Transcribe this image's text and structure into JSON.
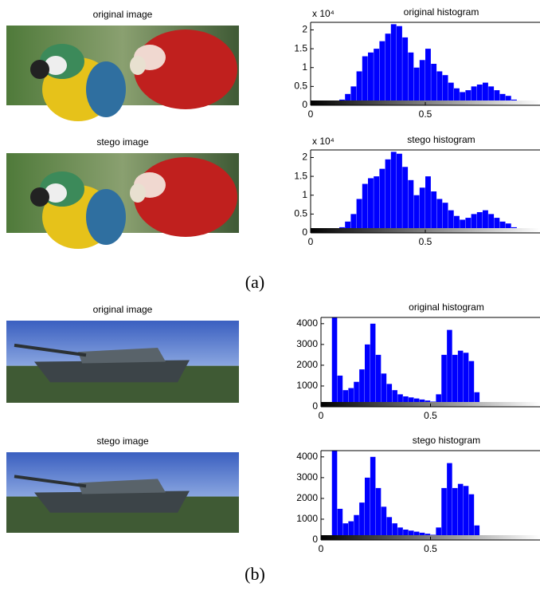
{
  "chart_data": [
    {
      "type": "histogram",
      "title": "original histogram",
      "annotation": "x 10⁴",
      "color": "#0000ff",
      "bins": [
        0,
        0.025,
        0.05,
        0.075,
        0.1,
        0.125,
        0.15,
        0.175,
        0.2,
        0.225,
        0.25,
        0.275,
        0.3,
        0.325,
        0.35,
        0.375,
        0.4,
        0.425,
        0.45,
        0.475,
        0.5,
        0.525,
        0.55,
        0.575,
        0.6,
        0.625,
        0.65,
        0.675,
        0.7,
        0.725,
        0.75,
        0.775,
        0.8,
        0.825,
        0.85,
        0.875,
        0.9,
        0.925,
        0.95,
        0.975,
        1
      ],
      "values": [
        0.05,
        0.05,
        0.05,
        0.05,
        0.08,
        0.15,
        0.3,
        0.5,
        0.9,
        1.3,
        1.4,
        1.5,
        1.7,
        1.9,
        2.15,
        2.1,
        1.8,
        1.4,
        1.0,
        1.2,
        1.5,
        1.1,
        0.9,
        0.8,
        0.6,
        0.45,
        0.35,
        0.4,
        0.5,
        0.55,
        0.6,
        0.5,
        0.4,
        0.3,
        0.25,
        0.15,
        0.12,
        0.1,
        0.08,
        0.06
      ],
      "xlim": [
        0,
        1
      ],
      "xticks": [
        0,
        0.5
      ],
      "ylim": [
        0,
        2.2
      ],
      "yticks": [
        0,
        0.5,
        1,
        1.5,
        2
      ]
    },
    {
      "type": "histogram",
      "title": "stego histogram",
      "annotation": "x 10⁴",
      "color": "#0000ff",
      "bins": [
        0,
        0.025,
        0.05,
        0.075,
        0.1,
        0.125,
        0.15,
        0.175,
        0.2,
        0.225,
        0.25,
        0.275,
        0.3,
        0.325,
        0.35,
        0.375,
        0.4,
        0.425,
        0.45,
        0.475,
        0.5,
        0.525,
        0.55,
        0.575,
        0.6,
        0.625,
        0.65,
        0.675,
        0.7,
        0.725,
        0.75,
        0.775,
        0.8,
        0.825,
        0.85,
        0.875,
        0.9,
        0.925,
        0.95,
        0.975,
        1
      ],
      "values": [
        0.05,
        0.05,
        0.05,
        0.05,
        0.08,
        0.15,
        0.3,
        0.5,
        0.9,
        1.3,
        1.45,
        1.5,
        1.7,
        1.95,
        2.15,
        2.1,
        1.75,
        1.4,
        1.0,
        1.2,
        1.5,
        1.1,
        0.9,
        0.8,
        0.6,
        0.45,
        0.35,
        0.4,
        0.5,
        0.55,
        0.6,
        0.5,
        0.4,
        0.3,
        0.25,
        0.15,
        0.12,
        0.1,
        0.08,
        0.06
      ],
      "xlim": [
        0,
        1
      ],
      "xticks": [
        0,
        0.5
      ],
      "ylim": [
        0,
        2.2
      ],
      "yticks": [
        0,
        0.5,
        1,
        1.5,
        2
      ]
    },
    {
      "type": "histogram",
      "title": "original histogram",
      "color": "#0000ff",
      "bins": [
        0,
        0.025,
        0.05,
        0.075,
        0.1,
        0.125,
        0.15,
        0.175,
        0.2,
        0.225,
        0.25,
        0.275,
        0.3,
        0.325,
        0.35,
        0.375,
        0.4,
        0.425,
        0.45,
        0.475,
        0.5,
        0.525,
        0.55,
        0.575,
        0.6,
        0.625,
        0.65,
        0.675,
        0.7,
        0.725,
        0.75,
        0.775,
        0.8,
        0.825,
        0.85,
        0.875,
        0.9,
        0.925,
        0.95,
        0.975,
        1
      ],
      "values": [
        50,
        80,
        4300,
        1500,
        800,
        900,
        1200,
        1800,
        3000,
        4000,
        2500,
        1600,
        1100,
        800,
        600,
        500,
        450,
        400,
        350,
        300,
        250,
        600,
        2500,
        3700,
        2500,
        2700,
        2600,
        2200,
        700,
        200,
        120,
        100,
        80,
        60,
        50,
        40,
        30,
        30,
        20,
        20
      ],
      "xlim": [
        0,
        1
      ],
      "xticks": [
        0,
        0.5
      ],
      "ylim": [
        0,
        4300
      ],
      "yticks": [
        0,
        1000,
        2000,
        3000,
        4000
      ]
    },
    {
      "type": "histogram",
      "title": "stego histogram",
      "color": "#0000ff",
      "bins": [
        0,
        0.025,
        0.05,
        0.075,
        0.1,
        0.125,
        0.15,
        0.175,
        0.2,
        0.225,
        0.25,
        0.275,
        0.3,
        0.325,
        0.35,
        0.375,
        0.4,
        0.425,
        0.45,
        0.475,
        0.5,
        0.525,
        0.55,
        0.575,
        0.6,
        0.625,
        0.65,
        0.675,
        0.7,
        0.725,
        0.75,
        0.775,
        0.8,
        0.825,
        0.85,
        0.875,
        0.9,
        0.925,
        0.95,
        0.975,
        1
      ],
      "values": [
        50,
        80,
        4300,
        1500,
        800,
        900,
        1200,
        1800,
        3000,
        4000,
        2500,
        1600,
        1100,
        800,
        600,
        500,
        450,
        400,
        350,
        300,
        250,
        600,
        2500,
        3700,
        2500,
        2700,
        2600,
        2200,
        700,
        200,
        120,
        100,
        80,
        60,
        50,
        40,
        30,
        30,
        20,
        20
      ],
      "xlim": [
        0,
        1
      ],
      "xticks": [
        0,
        0.5
      ],
      "ylim": [
        0,
        4300
      ],
      "yticks": [
        0,
        1000,
        2000,
        3000,
        4000
      ]
    }
  ],
  "images": [
    "original image",
    "stego image",
    "original image",
    "stego image"
  ],
  "captions": [
    "(a)",
    "(b)"
  ]
}
